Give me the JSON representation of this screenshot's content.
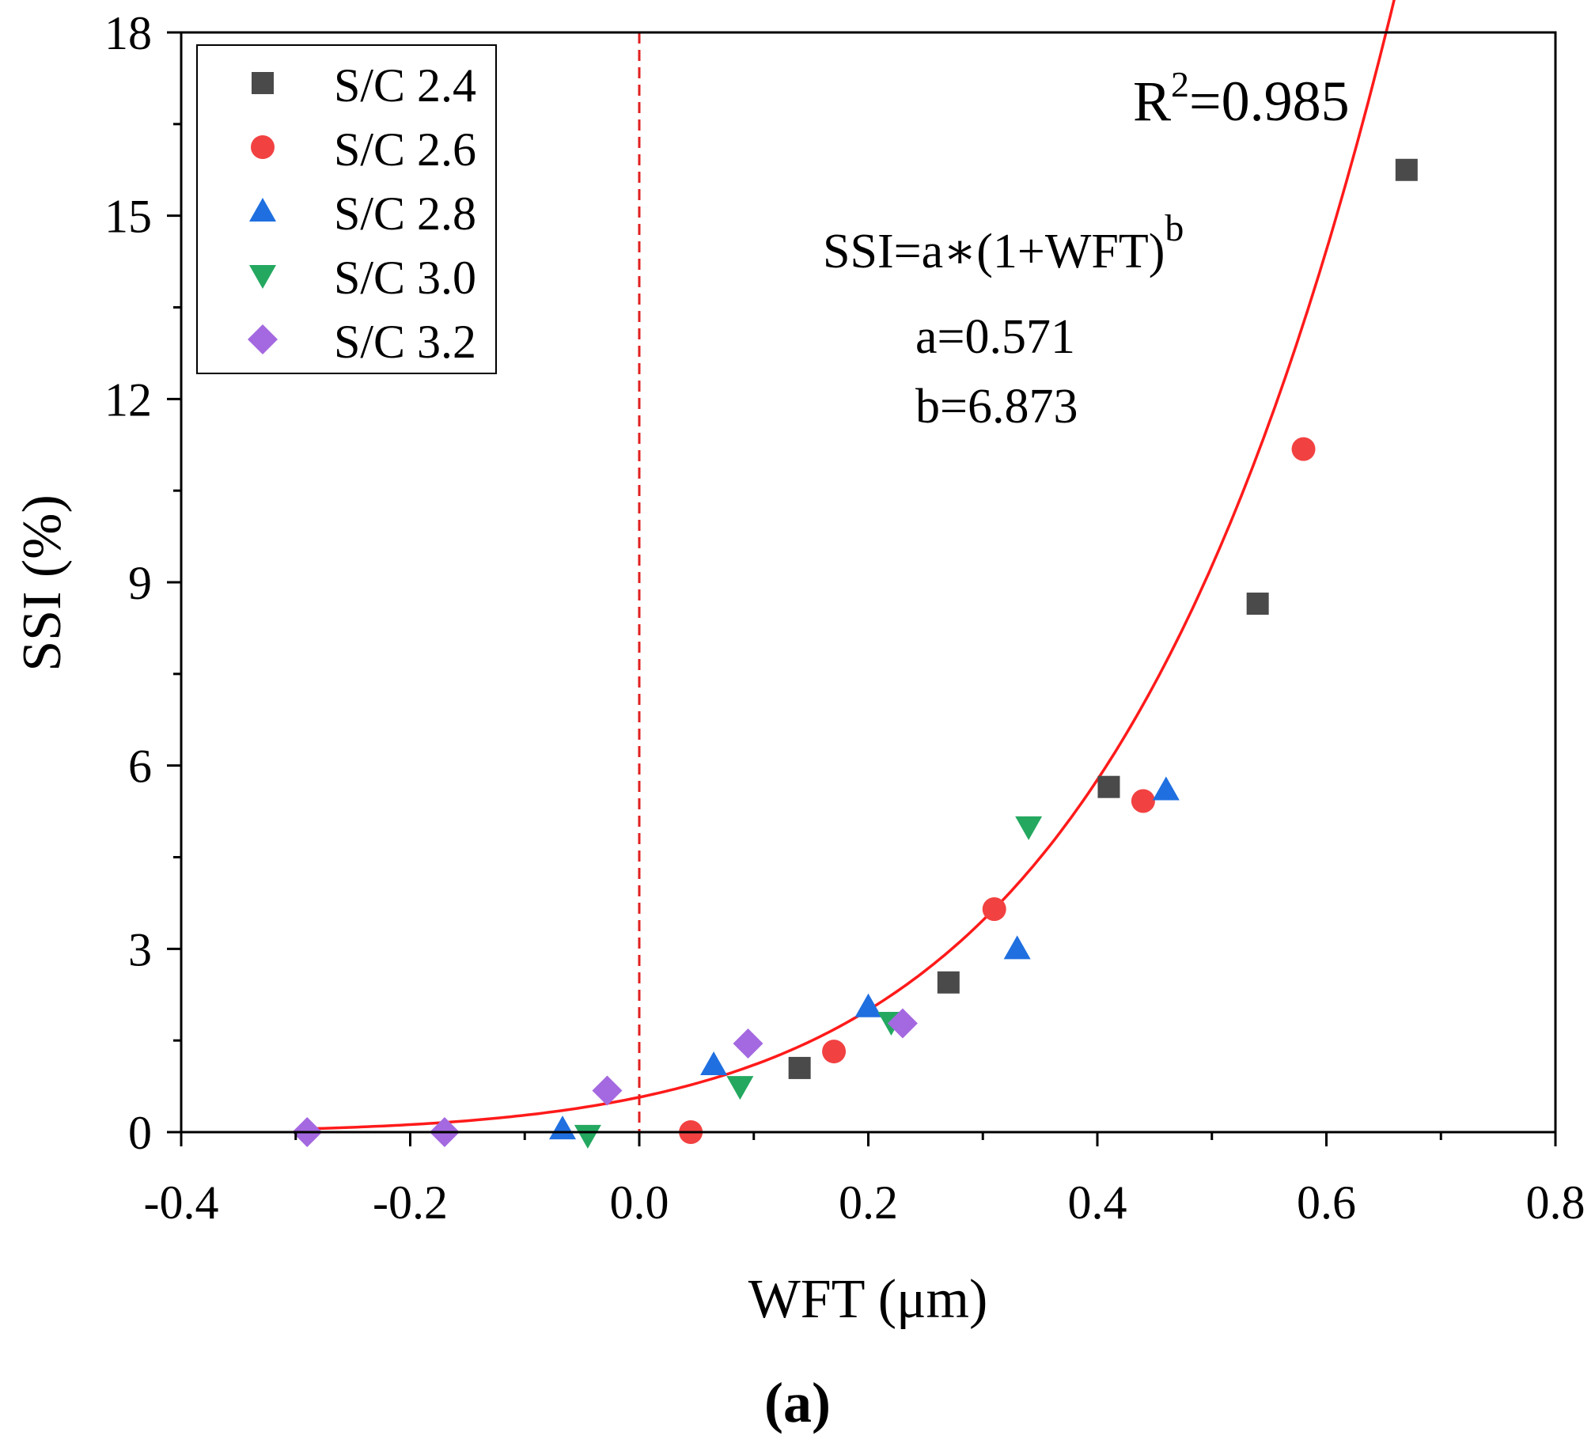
{
  "chart_data": {
    "type": "scatter",
    "xlabel": "WFT (μm)",
    "ylabel": "SSI (%)",
    "xlim": [
      -0.4,
      0.8
    ],
    "ylim": [
      0,
      18
    ],
    "x_ticks": [
      "-0.4",
      "-0.2",
      "0.0",
      "0.2",
      "0.4",
      "0.6",
      "0.8"
    ],
    "y_ticks": [
      "0",
      "3",
      "6",
      "9",
      "12",
      "15",
      "18"
    ],
    "grid": false,
    "legend_position": "top-left",
    "reference_line": {
      "x": 0.0,
      "color": "#e02020",
      "style": "dashed"
    },
    "series": [
      {
        "name": "S/C 2.4",
        "marker": "square",
        "color": "#4a4a4a",
        "points": [
          [
            0.14,
            1.05
          ],
          [
            0.27,
            2.45
          ],
          [
            0.41,
            5.65
          ],
          [
            0.54,
            8.65
          ],
          [
            0.67,
            15.75
          ]
        ]
      },
      {
        "name": "S/C 2.6",
        "marker": "circle",
        "color": "#f24141",
        "points": [
          [
            0.045,
            0.0
          ],
          [
            0.17,
            1.32
          ],
          [
            0.31,
            3.65
          ],
          [
            0.44,
            5.42
          ],
          [
            0.58,
            11.18
          ]
        ]
      },
      {
        "name": "S/C 2.8",
        "marker": "triangle-up",
        "color": "#1f6fe0",
        "points": [
          [
            -0.067,
            0.05
          ],
          [
            0.065,
            1.1
          ],
          [
            0.2,
            2.05
          ],
          [
            0.33,
            3.0
          ],
          [
            0.46,
            5.6
          ]
        ]
      },
      {
        "name": "S/C 3.0",
        "marker": "triangle-down",
        "color": "#24a860",
        "points": [
          [
            -0.045,
            -0.05
          ],
          [
            0.088,
            0.75
          ],
          [
            0.22,
            1.8
          ],
          [
            0.34,
            5.0
          ]
        ]
      },
      {
        "name": "S/C 3.2",
        "marker": "diamond",
        "color": "#a469e0",
        "points": [
          [
            -0.29,
            0.0
          ],
          [
            -0.17,
            0.0
          ],
          [
            -0.028,
            0.68
          ],
          [
            0.095,
            1.45
          ],
          [
            0.23,
            1.78
          ]
        ]
      }
    ],
    "fit": {
      "equation_prefix": "SSI=a∗(1+WFT)",
      "equation_sup": "b",
      "r2_prefix": "R",
      "r2_sup": "2",
      "r2_value": "=0.985",
      "a_label": "a=0.571",
      "b_label": "b=6.873",
      "a": 0.571,
      "b": 6.873,
      "x_range": [
        -0.29,
        0.67
      ],
      "color": "#ff1a1a"
    },
    "caption": "(a)"
  }
}
